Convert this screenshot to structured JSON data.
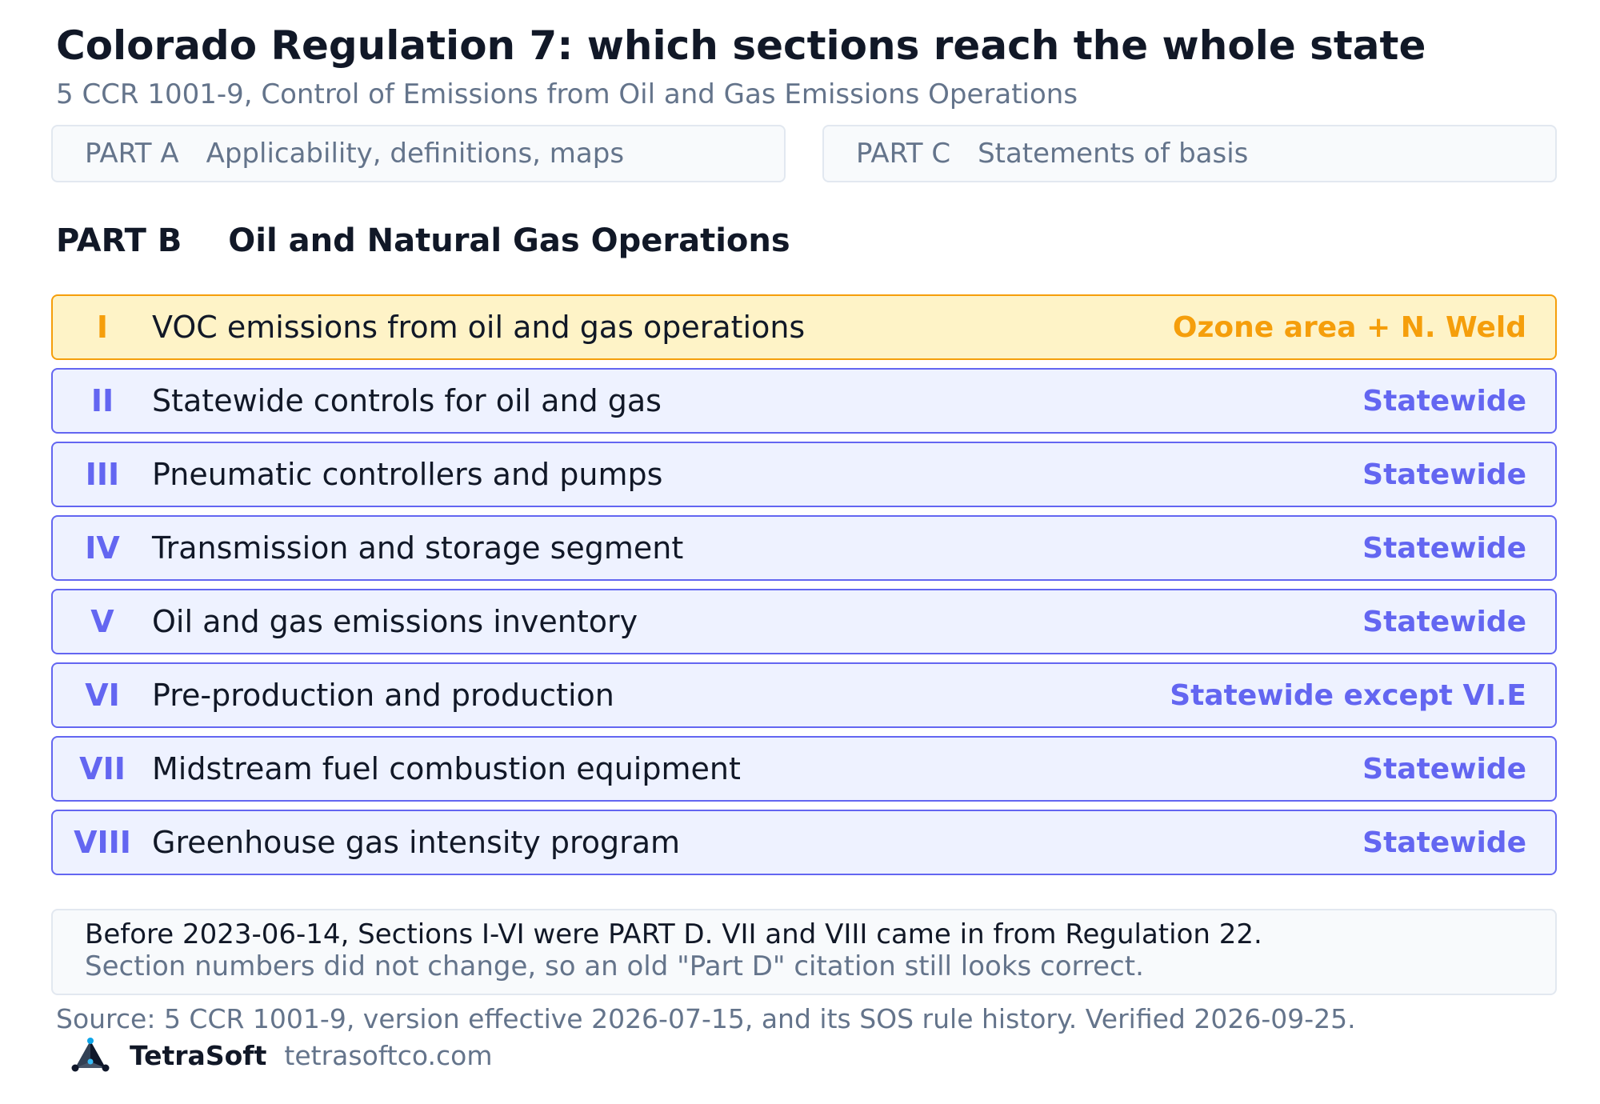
{
  "title": "Colorado Regulation 7: which sections reach the whole state",
  "subtitle": "5 CCR 1001-9, Control of Emissions from Oil and Gas Emissions Operations",
  "parts": {
    "a": {
      "code": "PART A",
      "label": "Applicability, definitions, maps"
    },
    "c": {
      "code": "PART C",
      "label": "Statements of basis"
    },
    "b": {
      "code": "PART B",
      "label": "Oil and Natural Gas Operations"
    }
  },
  "sections": [
    {
      "numeral": "I",
      "title": "VOC emissions from oil and gas operations",
      "scope": "Ozone area + N. Weld",
      "highlight": true
    },
    {
      "numeral": "II",
      "title": "Statewide controls for oil and gas",
      "scope": "Statewide",
      "highlight": false
    },
    {
      "numeral": "III",
      "title": "Pneumatic controllers and pumps",
      "scope": "Statewide",
      "highlight": false
    },
    {
      "numeral": "IV",
      "title": "Transmission and storage segment",
      "scope": "Statewide",
      "highlight": false
    },
    {
      "numeral": "V",
      "title": "Oil and gas emissions inventory",
      "scope": "Statewide",
      "highlight": false
    },
    {
      "numeral": "VI",
      "title": "Pre-production and production",
      "scope": "Statewide except VI.E",
      "highlight": false
    },
    {
      "numeral": "VII",
      "title": "Midstream fuel combustion equipment",
      "scope": "Statewide",
      "highlight": false
    },
    {
      "numeral": "VIII",
      "title": "Greenhouse gas intensity program",
      "scope": "Statewide",
      "highlight": false
    }
  ],
  "note": {
    "line1": "Before 2023-06-14, Sections I-VI were PART D. VII and VIII came in from Regulation 22.",
    "line2": "Section numbers did not change, so an old \"Part D\" citation still looks correct."
  },
  "source": "Source: 5 CCR 1001-9, version effective 2026-07-15, and its SOS rule history. Verified 2026-09-25.",
  "brand": {
    "name": "TetraSoft",
    "url": "tetrasoftco.com",
    "logo_icon": "tetrahedron-logo-icon"
  },
  "colors": {
    "statewide_accent": "#6366f1",
    "regional_accent": "#f59e0b",
    "regional_fill": "#fef3c7",
    "statewide_fill": "#eef2ff"
  }
}
